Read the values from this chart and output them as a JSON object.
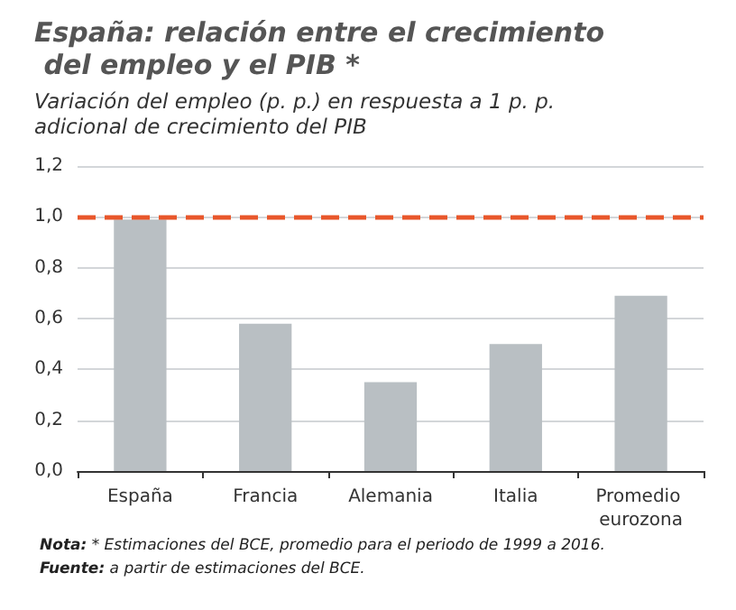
{
  "chart_data": {
    "type": "bar",
    "title": "España: relación entre el crecimiento del empleo y el PIB *",
    "subtitle": "Variación del empleo (p. p.) en respuesta a 1 p. p. adicional de crecimiento del PIB",
    "categories": [
      "España",
      "Francia",
      "Alemania",
      "Italia",
      "Promedio eurozona"
    ],
    "values": [
      0.99,
      0.58,
      0.35,
      0.5,
      0.69
    ],
    "color": "#b9bfc3",
    "ylim": [
      0,
      1.2
    ],
    "yticks": [
      {
        "value": 0,
        "label": "0,0"
      },
      {
        "value": 0.2,
        "label": "0,2"
      },
      {
        "value": 0.4,
        "label": "0,4"
      },
      {
        "value": 0.6,
        "label": "0,6"
      },
      {
        "value": 0.8,
        "label": "0,8"
      },
      {
        "value": 1,
        "label": "1,0"
      },
      {
        "value": 1.2,
        "label": "1,2"
      }
    ],
    "grid": "y",
    "ref_lines": [
      {
        "axis": "y",
        "value": 1,
        "color": "#e8562a",
        "line_style": "dashed"
      }
    ],
    "annotations": [
      "Nota: * Estimaciones del BCE, promedio para el periodo de 1999 a 2016.",
      "Fuente: a partir de estimaciones del BCE."
    ]
  }
}
